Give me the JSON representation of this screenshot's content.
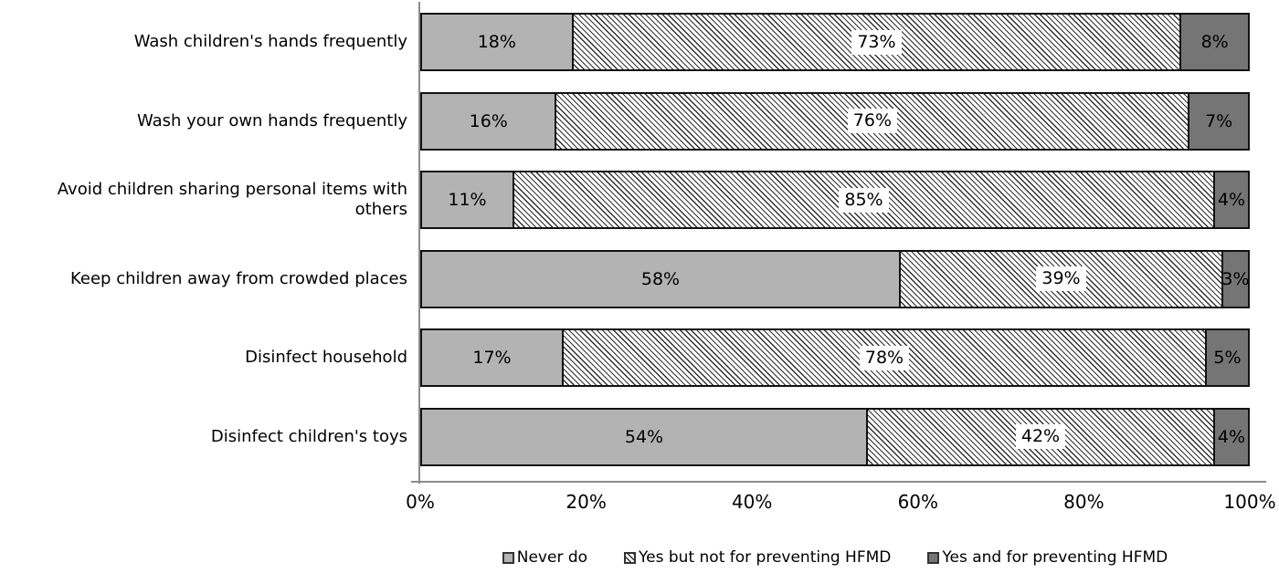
{
  "chart_data": {
    "type": "bar",
    "orientation": "horizontal",
    "stacked": true,
    "title": "",
    "xlabel": "",
    "ylabel": "",
    "xlim": [
      0,
      100
    ],
    "grid": false,
    "legend_position": "bottom",
    "categories": [
      "Wash children's hands frequently",
      "Wash your own hands frequently",
      "Avoid children sharing personal items with others",
      "Keep children away from crowded places",
      "Disinfect household",
      "Disinfect children's toys"
    ],
    "series": [
      {
        "name": "Never do",
        "style": "solid-light",
        "values": [
          18,
          16,
          11,
          58,
          17,
          54
        ]
      },
      {
        "name": "Yes but not for preventing HFMD",
        "style": "hatch",
        "values": [
          73,
          76,
          85,
          39,
          78,
          42
        ]
      },
      {
        "name": "Yes and for preventing HFMD",
        "style": "solid-dark",
        "values": [
          8,
          7,
          4,
          3,
          5,
          4
        ]
      }
    ],
    "x_ticks": [
      "0%",
      "20%",
      "40%",
      "60%",
      "80%",
      "100%"
    ],
    "value_suffix": "%",
    "colors": {
      "light_fill": "#b3b3b3",
      "dark_fill": "#757575",
      "hatch_line": "#303030",
      "hatch_background": "#ffffff",
      "segment_border": "#111111",
      "axis_line": "#8c8c8c",
      "text": "#000000",
      "value_box_background": "#ffffff"
    }
  }
}
